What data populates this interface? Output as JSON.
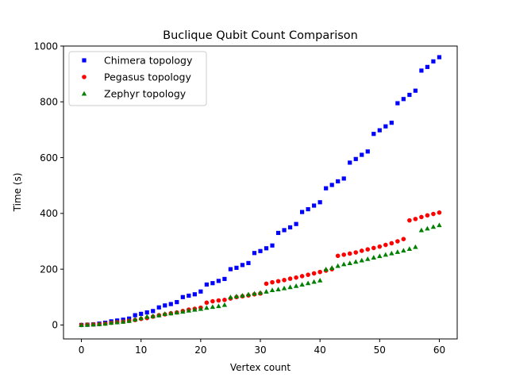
{
  "chart_data": {
    "type": "scatter",
    "title": "Buclique Qubit Count Comparison",
    "xlabel": "Vertex count",
    "ylabel": "Time (s)",
    "xlim": [
      -3,
      63
    ],
    "ylim": [
      -50,
      1000
    ],
    "xticks": [
      0,
      10,
      20,
      30,
      40,
      50,
      60
    ],
    "yticks": [
      0,
      200,
      400,
      600,
      800,
      1000
    ],
    "grid": false,
    "legend_position": "top-left",
    "series": [
      {
        "name": "Chimera topology",
        "marker": "square",
        "color": "#0000ff",
        "x": [
          0,
          1,
          2,
          3,
          4,
          5,
          6,
          7,
          8,
          9,
          10,
          11,
          12,
          13,
          14,
          15,
          16,
          17,
          18,
          19,
          20,
          21,
          22,
          23,
          24,
          25,
          26,
          27,
          28,
          29,
          30,
          31,
          32,
          33,
          34,
          35,
          36,
          37,
          38,
          39,
          40,
          41,
          42,
          43,
          44,
          45,
          46,
          47,
          48,
          49,
          50,
          51,
          52,
          53,
          54,
          55,
          56,
          57,
          58,
          59,
          60
        ],
        "y": [
          0,
          1,
          2,
          5,
          8,
          13,
          16,
          19,
          23,
          35,
          40,
          45,
          50,
          63,
          70,
          75,
          82,
          100,
          105,
          110,
          120,
          145,
          150,
          158,
          165,
          200,
          205,
          215,
          222,
          258,
          265,
          275,
          285,
          330,
          340,
          350,
          362,
          405,
          415,
          428,
          440,
          490,
          502,
          515,
          525,
          582,
          595,
          610,
          622,
          685,
          698,
          712,
          725,
          795,
          810,
          825,
          840,
          912,
          925,
          945,
          960
        ]
      },
      {
        "name": "Pegasus topology",
        "marker": "circle",
        "color": "#ff0000",
        "x": [
          0,
          1,
          2,
          3,
          4,
          5,
          6,
          7,
          8,
          9,
          10,
          11,
          12,
          13,
          14,
          15,
          16,
          17,
          18,
          19,
          20,
          21,
          22,
          23,
          24,
          25,
          26,
          27,
          28,
          29,
          30,
          31,
          32,
          33,
          34,
          35,
          36,
          37,
          38,
          39,
          40,
          41,
          42,
          43,
          44,
          45,
          46,
          47,
          48,
          49,
          50,
          51,
          52,
          53,
          54,
          55,
          56,
          57,
          58,
          59,
          60
        ],
        "y": [
          0,
          1,
          2,
          3,
          5,
          8,
          10,
          12,
          15,
          18,
          22,
          25,
          30,
          35,
          38,
          42,
          45,
          50,
          55,
          58,
          62,
          80,
          85,
          88,
          90,
          95,
          100,
          103,
          106,
          110,
          113,
          148,
          153,
          157,
          161,
          166,
          170,
          175,
          180,
          185,
          190,
          195,
          200,
          248,
          252,
          256,
          260,
          266,
          271,
          276,
          281,
          287,
          293,
          300,
          308,
          375,
          380,
          387,
          393,
          398,
          403
        ]
      },
      {
        "name": "Zephyr topology",
        "marker": "triangle",
        "color": "#008000",
        "x": [
          0,
          1,
          2,
          3,
          4,
          5,
          6,
          7,
          8,
          9,
          10,
          11,
          12,
          13,
          14,
          15,
          16,
          17,
          18,
          19,
          20,
          21,
          22,
          23,
          24,
          25,
          26,
          27,
          28,
          29,
          30,
          31,
          32,
          33,
          34,
          35,
          36,
          37,
          38,
          39,
          40,
          41,
          42,
          43,
          44,
          45,
          46,
          47,
          48,
          49,
          50,
          51,
          52,
          53,
          54,
          55,
          56,
          57,
          58,
          59,
          60
        ],
        "y": [
          0,
          1,
          2,
          3,
          5,
          8,
          10,
          12,
          15,
          20,
          25,
          30,
          32,
          35,
          40,
          42,
          45,
          48,
          52,
          55,
          58,
          62,
          65,
          68,
          72,
          100,
          103,
          106,
          110,
          113,
          116,
          120,
          125,
          128,
          132,
          136,
          140,
          145,
          150,
          155,
          160,
          200,
          205,
          212,
          218,
          222,
          227,
          232,
          237,
          242,
          247,
          252,
          257,
          262,
          267,
          273,
          280,
          340,
          346,
          352,
          358
        ]
      }
    ]
  }
}
